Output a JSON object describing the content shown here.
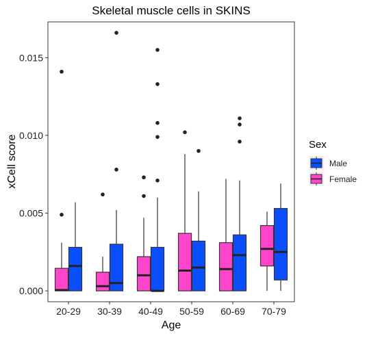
{
  "chart_data": {
    "type": "boxplot",
    "title": "Skeletal muscle cells in SKINS",
    "xlabel": "Age",
    "ylabel": "xCell score",
    "ylim": [
      -0.0007,
      0.0173
    ],
    "yticks": [
      0.0,
      0.005,
      0.01,
      0.015
    ],
    "ytick_labels": [
      "0.000",
      "0.005",
      "0.010",
      "0.015"
    ],
    "categories": [
      "20-29",
      "30-39",
      "40-49",
      "50-59",
      "60-69",
      "70-79"
    ],
    "grid": false,
    "legend": {
      "title": "Sex",
      "placement": "right",
      "entries": [
        "Male",
        "Female"
      ]
    },
    "series": [
      {
        "name": "Female",
        "color": "#FF44CC",
        "boxes": [
          {
            "category": "20-29",
            "whisker_low": 0.0,
            "q1": 0.0,
            "median": 5e-05,
            "q3": 0.00145,
            "whisker_high": 0.0031,
            "outliers": [
              0.0049,
              0.0141
            ]
          },
          {
            "category": "30-39",
            "whisker_low": 0.0,
            "q1": 0.0,
            "median": 0.0003,
            "q3": 0.0012,
            "whisker_high": 0.0022,
            "outliers": [
              0.0062
            ]
          },
          {
            "category": "40-49",
            "whisker_low": 0.0,
            "q1": 0.0,
            "median": 0.001,
            "q3": 0.0022,
            "whisker_high": 0.0047,
            "outliers": [
              0.0061,
              0.0073
            ]
          },
          {
            "category": "50-59",
            "whisker_low": 0.0,
            "q1": 0.0,
            "median": 0.0013,
            "q3": 0.0037,
            "whisker_high": 0.0088,
            "outliers": [
              0.0102
            ]
          },
          {
            "category": "60-69",
            "whisker_low": 0.0,
            "q1": 0.0,
            "median": 0.0014,
            "q3": 0.0031,
            "whisker_high": 0.0072,
            "outliers": []
          },
          {
            "category": "70-79",
            "whisker_low": 0.0,
            "q1": 0.0016,
            "median": 0.0027,
            "q3": 0.0042,
            "whisker_high": 0.0051,
            "outliers": []
          }
        ]
      },
      {
        "name": "Male",
        "color": "#0A4FFF",
        "boxes": [
          {
            "category": "20-29",
            "whisker_low": 0.0,
            "q1": 0.0,
            "median": 0.0016,
            "q3": 0.0028,
            "whisker_high": 0.0057,
            "outliers": []
          },
          {
            "category": "30-39",
            "whisker_low": 0.0,
            "q1": 0.0,
            "median": 0.0005,
            "q3": 0.003,
            "whisker_high": 0.0052,
            "outliers": [
              0.0078,
              0.0166
            ]
          },
          {
            "category": "40-49",
            "whisker_low": 0.0,
            "q1": 0.0,
            "median": 0.0,
            "q3": 0.0028,
            "whisker_high": 0.006,
            "outliers": [
              0.0071,
              0.0099,
              0.0108,
              0.0133,
              0.0155
            ]
          },
          {
            "category": "50-59",
            "whisker_low": 0.0,
            "q1": 0.0,
            "median": 0.0015,
            "q3": 0.0032,
            "whisker_high": 0.0064,
            "outliers": [
              0.009
            ]
          },
          {
            "category": "60-69",
            "whisker_low": 0.0,
            "q1": 0.0,
            "median": 0.0023,
            "q3": 0.0036,
            "whisker_high": 0.0071,
            "outliers": [
              0.0096,
              0.0107,
              0.0111
            ]
          },
          {
            "category": "70-79",
            "whisker_low": 0.0,
            "q1": 0.0007,
            "median": 0.0025,
            "q3": 0.0053,
            "whisker_high": 0.0069,
            "outliers": []
          }
        ]
      }
    ]
  }
}
